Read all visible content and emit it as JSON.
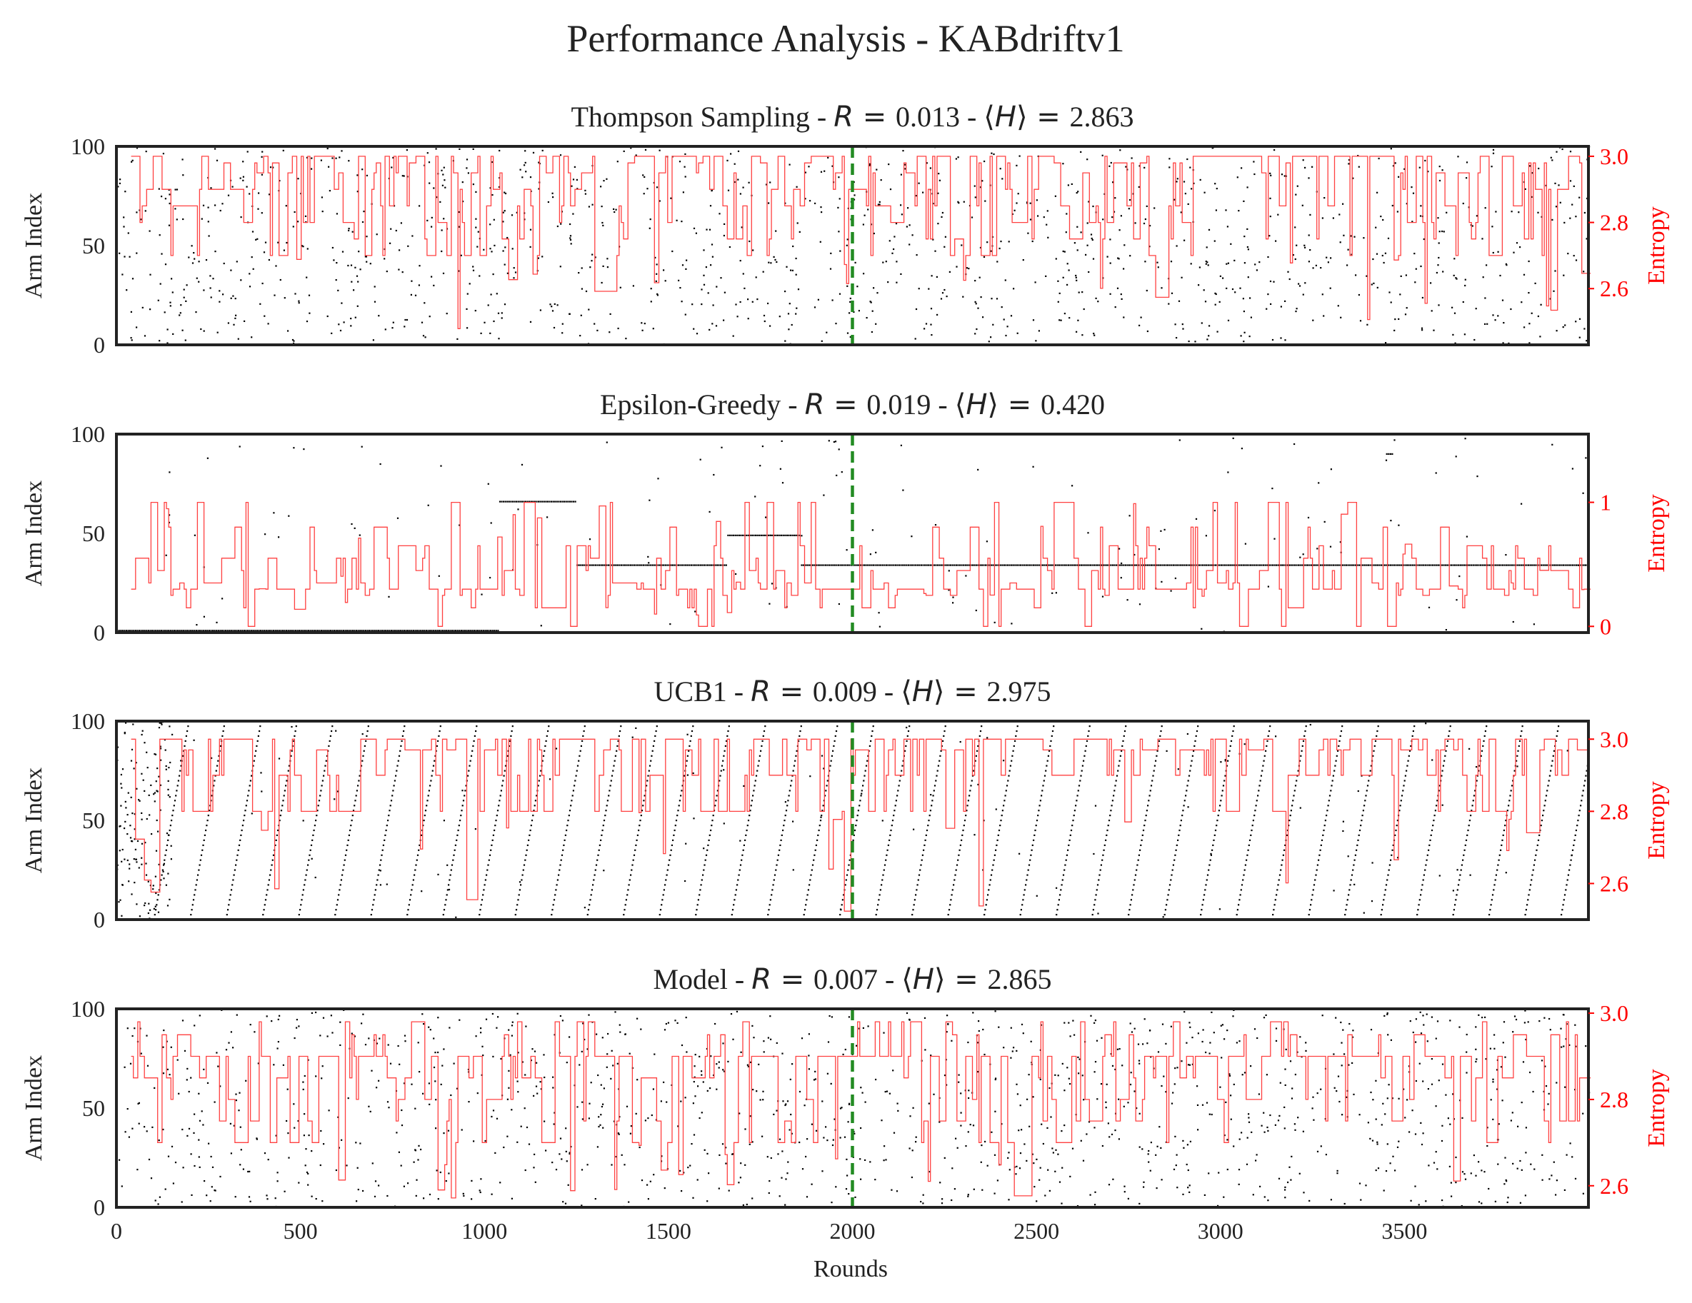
{
  "figure": {
    "title": "Performance Analysis - KABdriftv1",
    "x_label": "Rounds"
  },
  "colors": {
    "entropy": "#ff4040",
    "entropy_axis": "#ff0000",
    "dots": "#000000",
    "drift_line": "#228b22",
    "frame": "#222222"
  },
  "chart_data": [
    {
      "type": "scatter",
      "title": "Thompson Sampling - R = 0.013 - ⟨H⟩ = 2.863",
      "algorithm": "Thompson Sampling",
      "R": "0.013",
      "H": "2.863",
      "ylabel": "Arm Index",
      "y2label": "Entropy",
      "xlim": [
        0,
        4000
      ],
      "ylim": [
        0,
        100
      ],
      "y2lim": [
        2.43,
        3.03
      ],
      "yticks": [
        "0",
        "50",
        "100"
      ],
      "y2ticks": [
        "2.6",
        "2.8",
        "3.0"
      ],
      "y2tick_values": [
        2.6,
        2.8,
        3.0
      ],
      "drift_at": 2000,
      "entropy_base": 3.0,
      "entropy_levels": [
        2.98,
        2.95,
        2.9,
        2.85,
        2.8,
        2.75,
        2.7
      ],
      "entropy_min": 2.45,
      "scatter_pattern": "random"
    },
    {
      "type": "scatter",
      "title": "Epsilon-Greedy - R = 0.019 - ⟨H⟩ = 0.420",
      "algorithm": "Epsilon-Greedy",
      "R": "0.019",
      "H": "0.420",
      "ylabel": "Arm Index",
      "y2label": "Entropy",
      "xlim": [
        0,
        4000
      ],
      "ylim": [
        0,
        100
      ],
      "y2lim": [
        -0.05,
        1.55
      ],
      "yticks": [
        "0",
        "50",
        "100"
      ],
      "y2ticks": [
        "0",
        "1"
      ],
      "y2tick_values": [
        0,
        1
      ],
      "drift_at": 2000,
      "entropy_base": 0.3,
      "entropy_levels": [
        0.0,
        0.15,
        0.25,
        0.35,
        0.45,
        0.55,
        0.65,
        0.8,
        1.0
      ],
      "entropy_min": 0.0,
      "scatter_pattern": "greedy"
    },
    {
      "type": "scatter",
      "title": "UCB1 - R = 0.009 - ⟨H⟩ = 2.975",
      "algorithm": "UCB1",
      "R": "0.009",
      "H": "2.975",
      "ylabel": "Arm Index",
      "y2label": "Entropy",
      "xlim": [
        0,
        4000
      ],
      "ylim": [
        0,
        100
      ],
      "y2lim": [
        2.5,
        3.05
      ],
      "yticks": [
        "0",
        "50",
        "100"
      ],
      "y2ticks": [
        "2.6",
        "2.8",
        "3.0"
      ],
      "y2tick_values": [
        2.6,
        2.8,
        3.0
      ],
      "drift_at": 2000,
      "entropy_base": 3.0,
      "entropy_levels": [
        3.0,
        2.97,
        2.9,
        2.8
      ],
      "entropy_min": 2.52,
      "scatter_pattern": "sweep"
    },
    {
      "type": "scatter",
      "title": "Model - R = 0.007 - ⟨H⟩ = 2.865",
      "algorithm": "Model",
      "R": "0.007",
      "H": "2.865",
      "ylabel": "Arm Index",
      "y2label": "Entropy",
      "xlim": [
        0,
        4000
      ],
      "ylim": [
        0,
        100
      ],
      "y2lim": [
        2.55,
        3.01
      ],
      "yticks": [
        "0",
        "50",
        "100"
      ],
      "y2ticks": [
        "2.6",
        "2.8",
        "3.0"
      ],
      "y2tick_values": [
        2.6,
        2.8,
        3.0
      ],
      "drift_at": 2000,
      "entropy_base": 2.9,
      "entropy_levels": [
        2.98,
        2.95,
        2.9,
        2.85,
        2.8,
        2.75,
        2.7
      ],
      "entropy_min": 2.57,
      "scatter_pattern": "random"
    }
  ],
  "x_ticks": [
    "0",
    "500",
    "1000",
    "1500",
    "2000",
    "2500",
    "3000",
    "3500"
  ],
  "x_tick_values": [
    0,
    500,
    1000,
    1500,
    2000,
    2500,
    3000,
    3500
  ]
}
